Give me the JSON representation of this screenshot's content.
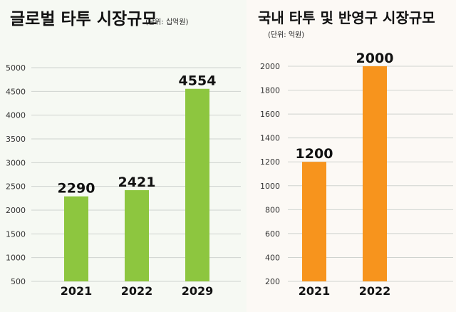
{
  "chart_data": [
    {
      "type": "bar",
      "title": "글로벌 타투 시장규모",
      "subtitle": "(단위: 십억원)",
      "categories": [
        "2021",
        "2022",
        "2029"
      ],
      "values": [
        2290,
        2421,
        4554
      ],
      "data_labels": [
        "2290",
        "2421",
        "4554"
      ],
      "yticks": [
        "500",
        "1000",
        "1500",
        "2000",
        "2500",
        "3000",
        "3500",
        "4000",
        "4500",
        "5000"
      ],
      "ylim": [
        500,
        5000
      ],
      "grid": true,
      "color": "#8dc63f"
    },
    {
      "type": "bar",
      "title": "국내 타투 및 반영구 시장규모",
      "subtitle": "(단위: 억원)",
      "categories": [
        "2021",
        "2022"
      ],
      "values": [
        1200,
        2000
      ],
      "data_labels": [
        "1200",
        "2000"
      ],
      "yticks": [
        "200",
        "400",
        "600",
        "800",
        "1000",
        "1200",
        "1400",
        "1600",
        "1800",
        "2000"
      ],
      "ylim": [
        200,
        2000
      ],
      "grid": true,
      "color": "#f7941d"
    }
  ]
}
